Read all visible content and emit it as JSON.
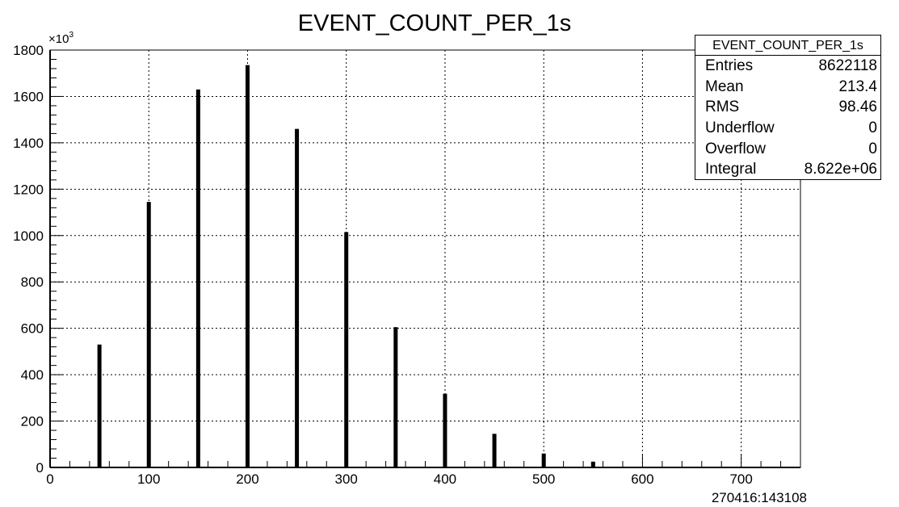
{
  "chart_data": {
    "type": "bar",
    "title": "EVENT_COUNT_PER_1s",
    "xlabel": "270416:143108",
    "ylabel": "",
    "y_multiplier_label": "×10",
    "y_multiplier_exp": "3",
    "xlim": [
      0,
      760
    ],
    "ylim": [
      0,
      1800
    ],
    "grid": true,
    "x_ticks": [
      "0",
      "100",
      "200",
      "300",
      "400",
      "500",
      "600",
      "700"
    ],
    "y_ticks": [
      "0",
      "200",
      "400",
      "600",
      "800",
      "1000",
      "1200",
      "1400",
      "1600",
      "1800"
    ],
    "x": [
      50,
      100,
      150,
      200,
      250,
      300,
      350,
      400,
      450,
      500,
      550
    ],
    "values": [
      530,
      1145,
      1630,
      1735,
      1460,
      1015,
      605,
      318,
      145,
      60,
      25
    ],
    "stats": {
      "title": "EVENT_COUNT_PER_1s",
      "rows": [
        {
          "label": "Entries",
          "value": "8622118"
        },
        {
          "label": "Mean",
          "value": "213.4"
        },
        {
          "label": "RMS",
          "value": "98.46"
        },
        {
          "label": "Underflow",
          "value": "0"
        },
        {
          "label": "Overflow",
          "value": "0"
        },
        {
          "label": "Integral",
          "value": "8.622e+06"
        }
      ]
    }
  }
}
